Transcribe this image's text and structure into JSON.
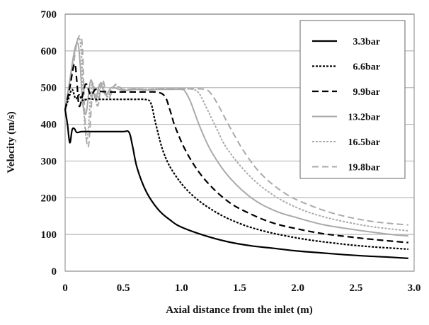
{
  "chart_data": {
    "type": "line",
    "title": "",
    "xlabel": "Axial distance from the inlet (m)",
    "ylabel": "Velocity (m/s)",
    "xlim": [
      0,
      3.0
    ],
    "ylim": [
      0,
      700
    ],
    "xticks": [
      "0",
      "0.5",
      "1.0",
      "1.5",
      "2.0",
      "2.5",
      "3.0"
    ],
    "xtick_values": [
      0,
      0.5,
      1.0,
      1.5,
      2.0,
      2.5,
      3.0
    ],
    "yticks": [
      "0",
      "100",
      "200",
      "300",
      "400",
      "500",
      "600",
      "700"
    ],
    "ytick_values": [
      0,
      100,
      200,
      300,
      400,
      500,
      600,
      700
    ],
    "grid": "horizontal",
    "legend_position": "top-right",
    "series": [
      {
        "name": "3.3bar",
        "color": "#000000",
        "dash": "solid",
        "x": [
          0,
          0.02,
          0.04,
          0.06,
          0.08,
          0.1,
          0.14,
          0.2,
          0.3,
          0.4,
          0.5,
          0.55,
          0.58,
          0.62,
          0.7,
          0.8,
          0.9,
          1.0,
          1.2,
          1.4,
          1.6,
          1.8,
          2.0,
          2.2,
          2.4,
          2.6,
          2.8,
          2.95
        ],
        "y": [
          440,
          400,
          350,
          385,
          388,
          378,
          380,
          380,
          380,
          380,
          380,
          378,
          340,
          280,
          215,
          168,
          140,
          120,
          97,
          80,
          69,
          62,
          55,
          50,
          45,
          41,
          38,
          35
        ]
      },
      {
        "name": "6.6bar",
        "color": "#000000",
        "dash": "3,2",
        "x": [
          0,
          0.03,
          0.06,
          0.09,
          0.12,
          0.15,
          0.2,
          0.25,
          0.3,
          0.4,
          0.5,
          0.6,
          0.7,
          0.74,
          0.78,
          0.85,
          0.95,
          1.1,
          1.3,
          1.5,
          1.7,
          1.9,
          2.1,
          2.3,
          2.5,
          2.7,
          2.95
        ],
        "y": [
          440,
          470,
          495,
          470,
          480,
          465,
          470,
          468,
          468,
          468,
          468,
          468,
          467,
          455,
          400,
          320,
          260,
          205,
          160,
          130,
          110,
          96,
          85,
          77,
          70,
          65,
          60
        ]
      },
      {
        "name": "9.9bar",
        "color": "#000000",
        "dash": "9,5",
        "x": [
          0,
          0.04,
          0.08,
          0.1,
          0.12,
          0.15,
          0.18,
          0.22,
          0.26,
          0.3,
          0.4,
          0.5,
          0.6,
          0.7,
          0.8,
          0.86,
          0.9,
          0.95,
          1.05,
          1.2,
          1.4,
          1.6,
          1.8,
          2.0,
          2.2,
          2.4,
          2.6,
          2.8,
          2.95
        ],
        "y": [
          440,
          500,
          565,
          520,
          450,
          480,
          510,
          480,
          495,
          490,
          488,
          488,
          488,
          488,
          487,
          475,
          440,
          390,
          320,
          250,
          190,
          155,
          130,
          115,
          103,
          95,
          88,
          82,
          78
        ]
      },
      {
        "name": "13.2bar",
        "color": "#aaaaaa",
        "dash": "solid",
        "x": [
          0,
          0.04,
          0.08,
          0.11,
          0.13,
          0.15,
          0.18,
          0.22,
          0.26,
          0.3,
          0.35,
          0.4,
          0.5,
          0.6,
          0.7,
          0.8,
          0.9,
          1.0,
          1.03,
          1.08,
          1.15,
          1.25,
          1.4,
          1.6,
          1.8,
          2.0,
          2.2,
          2.4,
          2.6,
          2.8,
          2.95
        ],
        "y": [
          440,
          520,
          600,
          620,
          560,
          460,
          430,
          520,
          470,
          510,
          480,
          500,
          492,
          495,
          493,
          495,
          495,
          495,
          490,
          460,
          400,
          330,
          260,
          200,
          165,
          145,
          128,
          117,
          108,
          100,
          96
        ]
      },
      {
        "name": "16.5bar",
        "color": "#aaaaaa",
        "dash": "3,2",
        "x": [
          0,
          0.05,
          0.09,
          0.12,
          0.14,
          0.16,
          0.19,
          0.23,
          0.27,
          0.31,
          0.36,
          0.42,
          0.5,
          0.6,
          0.7,
          0.8,
          0.9,
          1.0,
          1.1,
          1.15,
          1.2,
          1.3,
          1.4,
          1.6,
          1.8,
          2.0,
          2.2,
          2.4,
          2.6,
          2.8,
          2.95
        ],
        "y": [
          440,
          530,
          610,
          635,
          590,
          440,
          360,
          510,
          460,
          515,
          475,
          505,
          495,
          497,
          495,
          497,
          497,
          497,
          495,
          485,
          455,
          390,
          330,
          255,
          205,
          172,
          150,
          135,
          123,
          115,
          110
        ]
      },
      {
        "name": "19.8bar",
        "color": "#aaaaaa",
        "dash": "9,5",
        "x": [
          0,
          0.06,
          0.1,
          0.13,
          0.15,
          0.17,
          0.2,
          0.24,
          0.28,
          0.32,
          0.37,
          0.43,
          0.5,
          0.6,
          0.7,
          0.8,
          0.9,
          1.0,
          1.1,
          1.2,
          1.25,
          1.32,
          1.42,
          1.55,
          1.7,
          1.9,
          2.1,
          2.3,
          2.5,
          2.7,
          2.95
        ],
        "y": [
          440,
          540,
          620,
          640,
          600,
          420,
          340,
          500,
          450,
          520,
          470,
          508,
          495,
          497,
          495,
          497,
          497,
          497,
          497,
          495,
          485,
          450,
          390,
          320,
          260,
          210,
          180,
          158,
          143,
          133,
          126
        ]
      }
    ]
  }
}
